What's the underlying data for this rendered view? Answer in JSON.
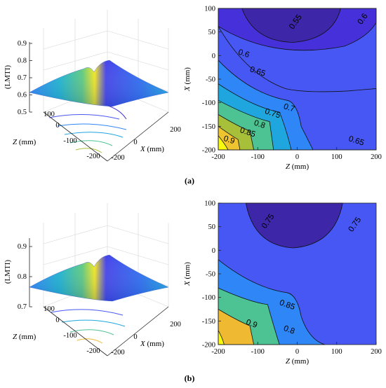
{
  "chart_data": [
    {
      "panel": "(a)",
      "type": "surface",
      "zlabel": "(LMTI)",
      "z_ticks": [
        "0.5",
        "0.6",
        "0.7",
        "0.8",
        "0.9"
      ],
      "zlim": [
        0.5,
        0.95
      ],
      "xlabel_var": "X",
      "xlabel_unit": " (mm)",
      "ylabel_var": "Z",
      "ylabel_unit": " (mm)",
      "x_ticks": [
        "-200",
        "0",
        "200"
      ],
      "y_ticks": [
        "-200",
        "-100",
        "0",
        "100"
      ],
      "colormap": [
        "#3e26a8",
        "#4743e9",
        "#2e87f7",
        "#1fb6ce",
        "#5fcb7e",
        "#d8ba2f",
        "#f7e81d",
        "#f9fb0e"
      ]
    },
    {
      "panel": "(a)",
      "type": "contour",
      "xlabel_var": "Z",
      "xlabel_unit": " (mm)",
      "ylabel_var": "X",
      "ylabel_unit": " (mm)",
      "xlim": [
        -200,
        200
      ],
      "ylim": [
        -200,
        100
      ],
      "x_ticks": [
        "-200",
        "-100",
        "0",
        "100",
        "200"
      ],
      "y_ticks": [
        "100",
        "50",
        "0",
        "-50",
        "-100",
        "-150",
        "-200"
      ],
      "levels": [
        0.55,
        0.6,
        0.65,
        0.7,
        0.75,
        0.8,
        0.85,
        0.9
      ],
      "level_labels": [
        "0.55",
        "0.6",
        "0.6",
        "0.65",
        "0.7",
        "0.75",
        "0.8",
        "0.85",
        "0.9",
        "0.65"
      ],
      "level_colors": [
        "#3e26a8",
        "#4530d9",
        "#4757f4",
        "#2f86f6",
        "#1fa6df",
        "#4dc394",
        "#a8bf3a",
        "#efc431",
        "#f9fb0e"
      ]
    },
    {
      "panel": "(b)",
      "type": "surface",
      "zlabel": "(LMTI)",
      "z_ticks": [
        "0.7",
        "0.8",
        "0.9"
      ],
      "zlim": [
        0.7,
        0.95
      ],
      "xlabel_var": "X",
      "xlabel_unit": " (mm)",
      "ylabel_var": "Z",
      "ylabel_unit": " (mm)",
      "x_ticks": [
        "-200",
        "0",
        "200"
      ],
      "y_ticks": [
        "-200",
        "-100",
        "0",
        "100"
      ],
      "colormap": [
        "#3e26a8",
        "#4743e9",
        "#2e87f7",
        "#1fb6ce",
        "#5fcb7e",
        "#d8ba2f",
        "#f7e81d",
        "#f9fb0e"
      ]
    },
    {
      "panel": "(b)",
      "type": "contour",
      "xlabel_var": "Z",
      "xlabel_unit": " (mm)",
      "ylabel_var": "X",
      "ylabel_unit": " (mm)",
      "xlim": [
        -200,
        200
      ],
      "ylim": [
        -200,
        100
      ],
      "x_ticks": [
        "-200",
        "-100",
        "0",
        "100",
        "200"
      ],
      "y_ticks": [
        "100",
        "50",
        "0",
        "-50",
        "-100",
        "-150",
        "-200"
      ],
      "levels": [
        0.75,
        0.8,
        0.85,
        0.9
      ],
      "level_labels": [
        "0.75",
        "0.75",
        "0.85",
        "0.9",
        "0.8"
      ],
      "level_colors": [
        "#3e26a8",
        "#4757f4",
        "#2f86f6",
        "#4dc394",
        "#efb931",
        "#f9fb0e"
      ]
    }
  ],
  "captions": [
    "(a)",
    "(b)"
  ]
}
